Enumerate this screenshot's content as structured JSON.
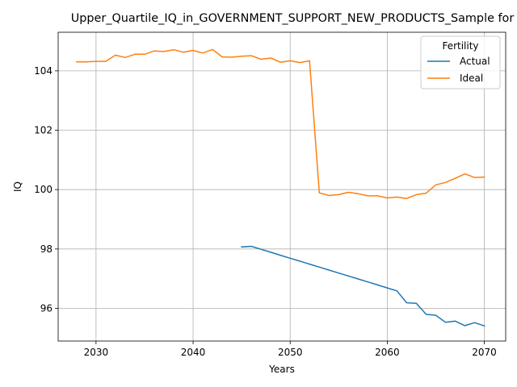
{
  "chart_data": {
    "type": "line",
    "title": "Upper_Quartile_IQ_in_GOVERNMENT_SUPPORT_NEW_PRODUCTS_Sample for",
    "xlabel": "Years",
    "ylabel": "IQ",
    "xlim": [
      2026.1,
      2072.2
    ],
    "ylim": [
      94.9,
      105.3
    ],
    "xticks": [
      2030,
      2040,
      2050,
      2060,
      2070
    ],
    "yticks": [
      96,
      98,
      100,
      102,
      104
    ],
    "grid": true,
    "legend": {
      "title": "Fertility",
      "placement": "top-right"
    },
    "series": [
      {
        "name": "Actual",
        "color": "#1f77b4",
        "x": [
          2045,
          2046,
          2047,
          2048,
          2049,
          2050,
          2051,
          2052,
          2053,
          2054,
          2055,
          2056,
          2057,
          2058,
          2059,
          2060,
          2061,
          2062,
          2063,
          2064,
          2065,
          2066,
          2067,
          2068,
          2069,
          2070
        ],
        "values": [
          98.07,
          98.09,
          97.99,
          97.89,
          97.79,
          97.69,
          97.59,
          97.49,
          97.39,
          97.29,
          97.19,
          97.09,
          96.99,
          96.89,
          96.79,
          96.69,
          96.59,
          96.19,
          96.17,
          95.8,
          95.77,
          95.53,
          95.57,
          95.42,
          95.52,
          95.41
        ]
      },
      {
        "name": "Ideal",
        "color": "#ff7f0e",
        "x": [
          2028,
          2029,
          2030,
          2031,
          2032,
          2033,
          2034,
          2035,
          2036,
          2037,
          2038,
          2039,
          2040,
          2041,
          2042,
          2043,
          2044,
          2045,
          2046,
          2047,
          2048,
          2049,
          2050,
          2051,
          2052,
          2053,
          2054,
          2055,
          2056,
          2057,
          2058,
          2059,
          2060,
          2061,
          2062,
          2063,
          2064,
          2065,
          2066,
          2067,
          2068,
          2069,
          2070
        ],
        "values": [
          104.3,
          104.3,
          104.32,
          104.32,
          104.53,
          104.45,
          104.56,
          104.56,
          104.67,
          104.65,
          104.71,
          104.63,
          104.69,
          104.6,
          104.72,
          104.47,
          104.46,
          104.49,
          104.51,
          104.39,
          104.43,
          104.29,
          104.34,
          104.28,
          104.34,
          99.89,
          99.8,
          99.83,
          99.91,
          99.86,
          99.79,
          99.79,
          99.72,
          99.75,
          99.7,
          99.83,
          99.88,
          100.16,
          100.24,
          100.38,
          100.53,
          100.41,
          100.42
        ]
      }
    ]
  }
}
